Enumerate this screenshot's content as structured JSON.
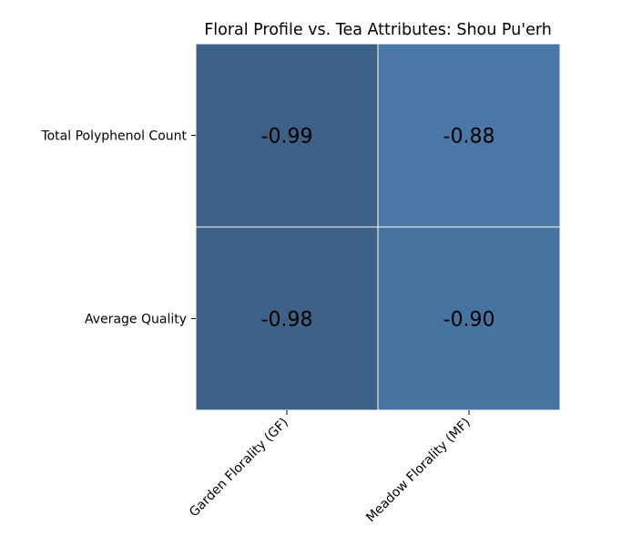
{
  "chart_data": {
    "type": "heatmap",
    "title": "Floral Profile vs. Tea Attributes: Shou Pu'erh",
    "xlabel": "",
    "ylabel": "",
    "x_categories": [
      "Garden Florality (GF)",
      "Meadow Florality (MF)"
    ],
    "y_categories": [
      "Total Polyphenol Count",
      "Average Quality"
    ],
    "values": [
      [
        -0.99,
        -0.88
      ],
      [
        -0.98,
        -0.9
      ]
    ],
    "value_labels": [
      [
        "-0.99",
        "-0.88"
      ],
      [
        "-0.98",
        "-0.90"
      ]
    ],
    "color_range": [
      -1,
      1
    ],
    "colormap": "blue-white-red (diverging)",
    "colorbar": false,
    "grid": false,
    "cell_border_color": "#ffffff"
  }
}
